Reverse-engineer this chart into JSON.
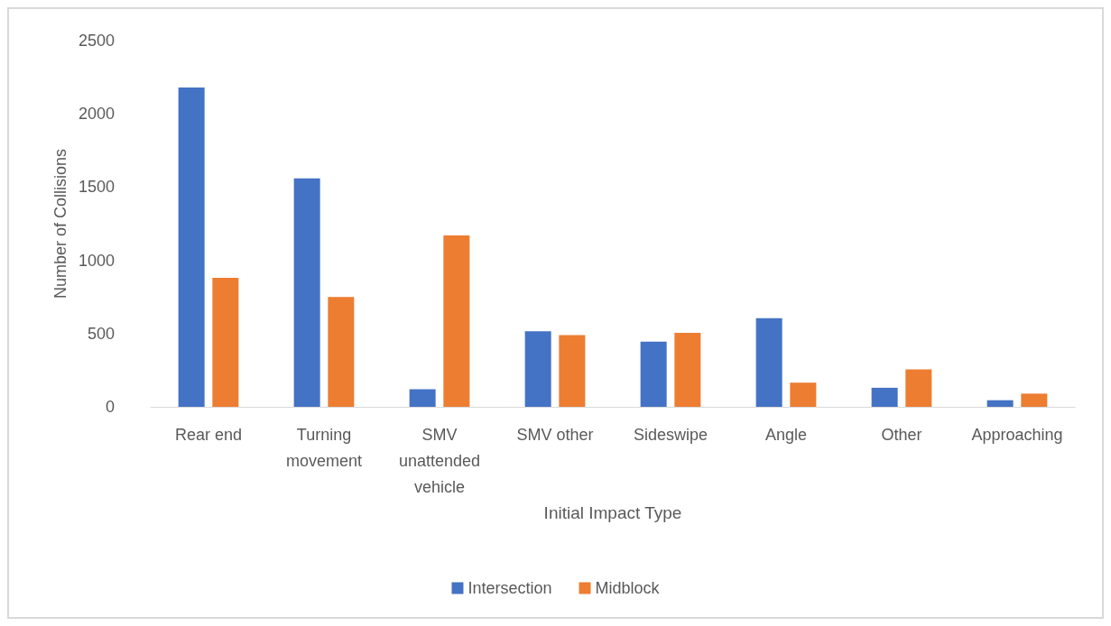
{
  "chart_data": {
    "type": "bar",
    "xlabel": "Initial Impact Type",
    "ylabel": "Number of Collisions",
    "categories": [
      "Rear end",
      "Turning movement",
      "SMV unattended vehicle",
      "SMV other",
      "Sideswipe",
      "Angle",
      "Other",
      "Approaching"
    ],
    "series": [
      {
        "name": "Intersection",
        "color": "#4472c4",
        "values": [
          2180,
          1560,
          120,
          515,
          445,
          605,
          130,
          45
        ]
      },
      {
        "name": "Midblock",
        "color": "#ed7d31",
        "values": [
          880,
          750,
          1170,
          490,
          505,
          165,
          255,
          90
        ]
      }
    ],
    "ylim": [
      0,
      2500
    ],
    "yticks": [
      0,
      500,
      1000,
      1500,
      2000,
      2500
    ],
    "grid": false,
    "legend": "bottom"
  }
}
